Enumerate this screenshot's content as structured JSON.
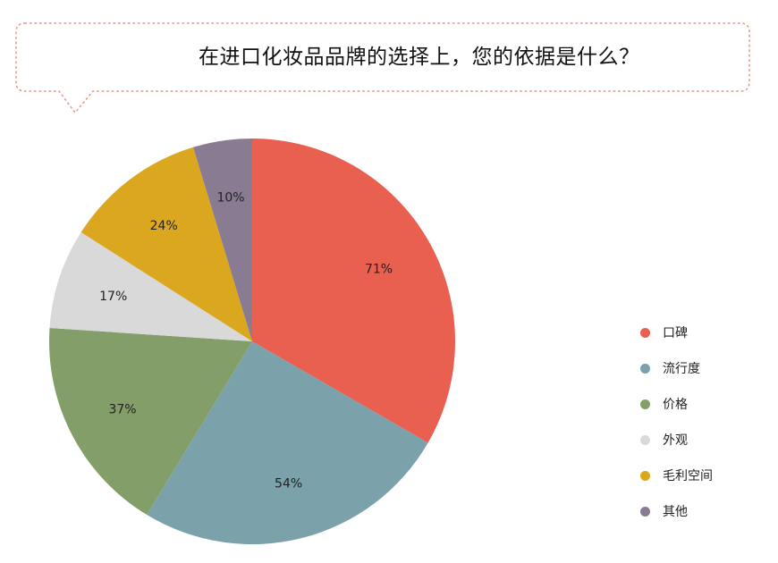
{
  "chart_data": {
    "type": "pie",
    "title": "在进口化妆品品牌的选择上，您的依据是什么？",
    "slices": [
      {
        "label": "口碑",
        "value": 71,
        "display": "71%",
        "color": "#e95f50"
      },
      {
        "label": "流行度",
        "value": 54,
        "display": "54%",
        "color": "#7ba1aa"
      },
      {
        "label": "价格",
        "value": 37,
        "display": "37%",
        "color": "#839e69"
      },
      {
        "label": "外观",
        "value": 17,
        "display": "17%",
        "color": "#d9d9d9"
      },
      {
        "label": "毛利空间",
        "value": 24,
        "display": "24%",
        "color": "#dba71e"
      },
      {
        "label": "其他",
        "value": 10,
        "display": "10%",
        "color": "#887b92"
      }
    ],
    "legend_position": "right"
  }
}
